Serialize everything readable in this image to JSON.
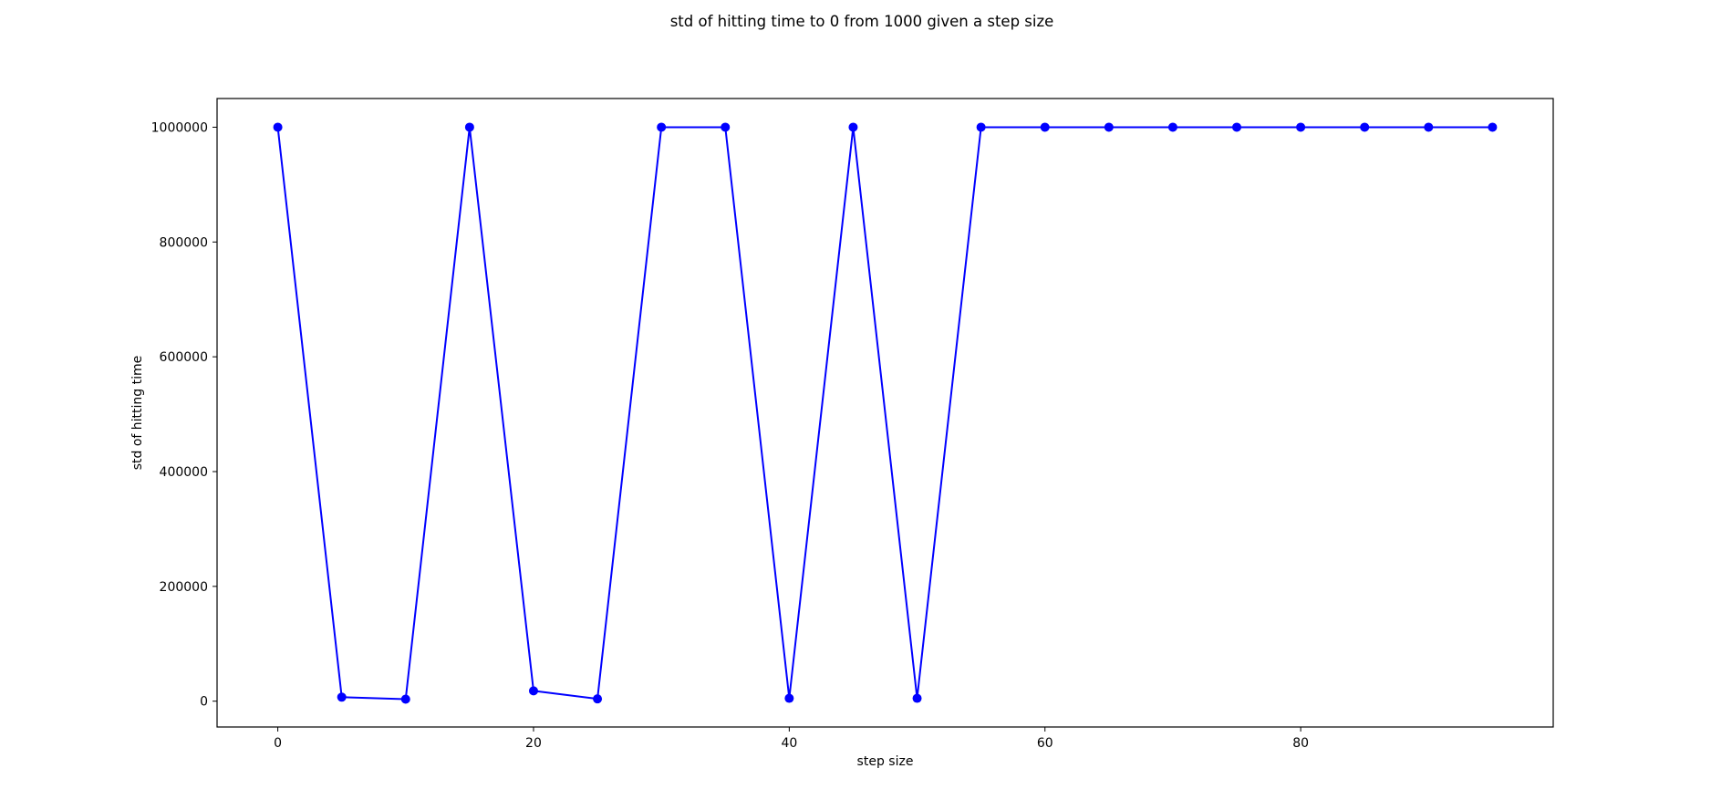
{
  "chart_data": {
    "type": "line",
    "title": "std of hitting time to 0 from 1000 given a step size",
    "xlabel": "step size",
    "ylabel": "std of hitting time",
    "xlim": [
      -4.75,
      99.75
    ],
    "ylim": [
      -45000,
      1050000
    ],
    "xticks": [
      0,
      20,
      40,
      60,
      80
    ],
    "yticks": [
      0,
      200000,
      400000,
      600000,
      800000,
      1000000
    ],
    "grid": false,
    "legend": "none",
    "series": [
      {
        "color": "#0000ff",
        "marker": "circle",
        "x": [
          0,
          5,
          10,
          15,
          20,
          25,
          30,
          35,
          40,
          45,
          50,
          55,
          60,
          65,
          70,
          75,
          80,
          85,
          90,
          95
        ],
        "y": [
          1000000,
          7000,
          3500,
          1000000,
          18000,
          4000,
          1000000,
          1000000,
          5000,
          1000000,
          5000,
          1000000,
          1000000,
          1000000,
          1000000,
          1000000,
          1000000,
          1000000,
          1000000,
          1000000
        ]
      }
    ]
  }
}
